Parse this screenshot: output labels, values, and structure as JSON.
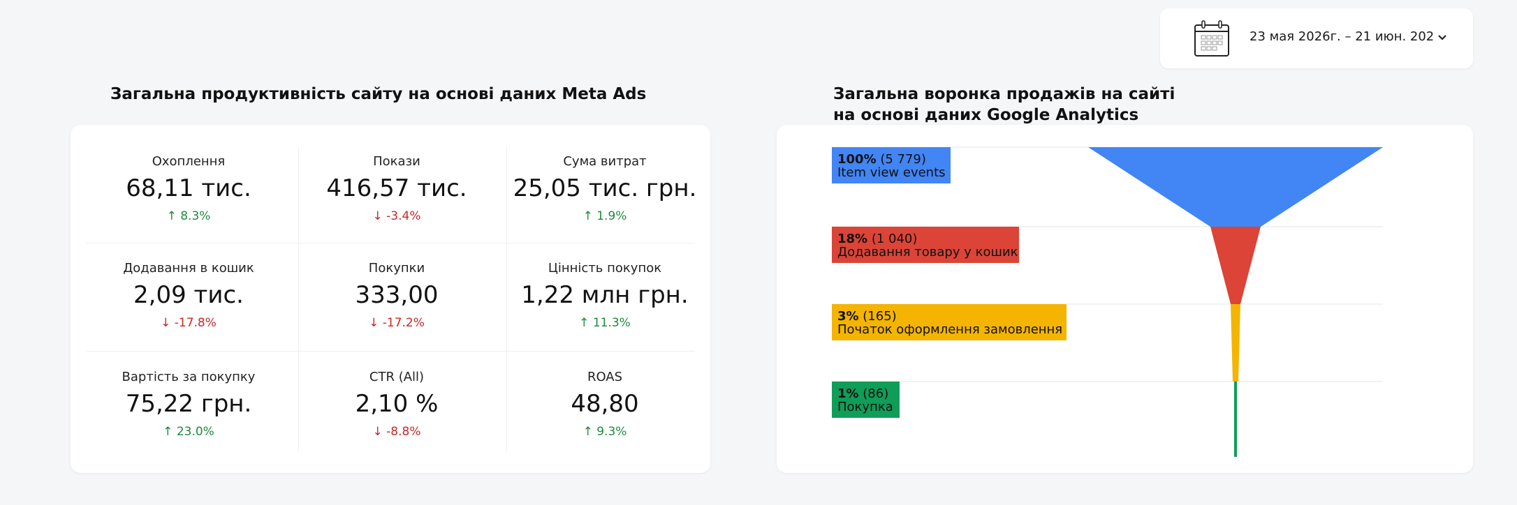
{
  "date_picker": {
    "range": "23 мая 2026г. – 21 июн. 202",
    "icon": "calendar-icon"
  },
  "left": {
    "title": "Загальна продуктивність сайту на основі даних Meta Ads",
    "metrics": [
      {
        "label": "Охоплення",
        "value": "68,11 тис.",
        "delta": "↑ 8.3%",
        "trend": "up"
      },
      {
        "label": "Покази",
        "value": "416,57 тис.",
        "delta": "↓ -3.4%",
        "trend": "down"
      },
      {
        "label": "Сума витрат",
        "value": "25,05 тис. грн.",
        "delta": "↑ 1.9%",
        "trend": "up"
      },
      {
        "label": "Додавання в кошик",
        "value": "2,09 тис.",
        "delta": "↓ -17.8%",
        "trend": "down"
      },
      {
        "label": "Покупки",
        "value": "333,00",
        "delta": "↓ -17.2%",
        "trend": "down"
      },
      {
        "label": "Цінність покупок",
        "value": "1,22 млн грн.",
        "delta": "↑ 11.3%",
        "trend": "up"
      },
      {
        "label": "Вартість за покупку",
        "value": "75,22 грн.",
        "delta": "↑ 23.0%",
        "trend": "up"
      },
      {
        "label": "CTR (All)",
        "value": "2,10 %",
        "delta": "↓ -8.8%",
        "trend": "down"
      },
      {
        "label": "ROAS",
        "value": "48,80",
        "delta": "↑ 9.3%",
        "trend": "up"
      }
    ]
  },
  "right": {
    "title_line1": "Загальна воронка продажів на сайті",
    "title_line2": "на основі даних Google Analytics",
    "funnel": [
      {
        "pct": "100%",
        "count": "(5 779)",
        "label": "Item view events",
        "color": "#4285f4",
        "share": 1.0
      },
      {
        "pct": "18%",
        "count": "(1 040)",
        "label": "Додавання товару у кошик",
        "color": "#db4437",
        "share": 0.18
      },
      {
        "pct": "3%",
        "count": "(165)",
        "label": "Початок оформлення замовлення",
        "color": "#f4b400",
        "share": 0.03
      },
      {
        "pct": "1%",
        "count": "(86)",
        "label": "Покупка",
        "color": "#0f9d58",
        "share": 0.01
      }
    ]
  },
  "colors": {
    "up": "#1e8a3c",
    "down": "#c62828",
    "background": "#f5f6f8"
  }
}
